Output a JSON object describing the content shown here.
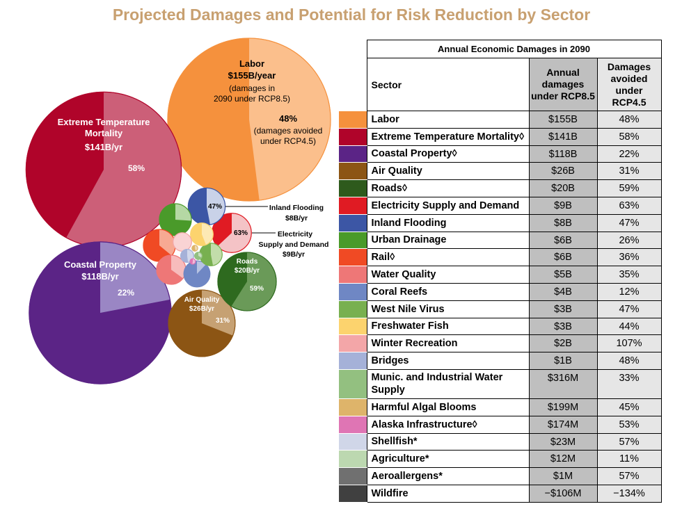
{
  "title": "Projected Damages and Potential for Risk Reduction by Sector",
  "chart_data": [
    {
      "type": "bubble",
      "bubbles": [
        {
          "name": "Labor",
          "damages": "$155B/year",
          "note1": "(damages in",
          "note2": "2090 under RCP8.5)",
          "avoided": "48%",
          "avoided_note1": "(damages avoided",
          "avoided_note2": "under RCP4.5)",
          "value_b": 155,
          "avoided_pct": 48,
          "color": "#f5913d",
          "light": "#fbbf8c"
        },
        {
          "name": "Extreme Temperature Mortality",
          "name_line1": "Extreme Temperature",
          "name_line2": "Mortality",
          "damages": "$141B/yr",
          "avoided": "58%",
          "value_b": 141,
          "avoided_pct": 58,
          "color": "#b0042a",
          "light": "#cc5f78"
        },
        {
          "name": "Coastal Property",
          "damages": "$118B/yr",
          "avoided": "22%",
          "value_b": 118,
          "avoided_pct": 22,
          "color": "#5b2486",
          "light": "#9a86c4"
        },
        {
          "name": "Air Quality",
          "damages": "$26B/yr",
          "avoided": "31%",
          "value_b": 26,
          "avoided_pct": 31,
          "color": "#8c5514",
          "light": "#c6a173"
        },
        {
          "name": "Roads",
          "damages": "$20B/yr",
          "avoided": "59%",
          "value_b": 20,
          "avoided_pct": 59,
          "color": "#2e6a1f",
          "light": "#6a9a58"
        },
        {
          "name": "Electricity Supply and Demand",
          "callout1": "Electricity",
          "callout2": "Supply and Demand",
          "callout3": "$9B/yr",
          "avoided": "63%",
          "value_b": 9,
          "avoided_pct": 63,
          "color": "#e01b23",
          "light": "#f4c3c6"
        },
        {
          "name": "Inland Flooding",
          "callout1": "Inland Flooding",
          "callout2": "$8B/yr",
          "avoided": "47%",
          "value_b": 8,
          "avoided_pct": 47,
          "color": "#3c56a5",
          "light": "#c9d2e8"
        },
        {
          "name": "Urban Drainage",
          "value_b": 6,
          "avoided_pct": 26,
          "color": "#4a9a2a",
          "light": "#b5d8a4"
        },
        {
          "name": "Rail",
          "value_b": 6,
          "avoided_pct": 36,
          "color": "#f04a24",
          "light": "#f7a993"
        },
        {
          "name": "Water Quality",
          "value_b": 5,
          "avoided_pct": 35,
          "color": "#ee7777",
          "light": "#f7bcbc"
        },
        {
          "name": "Coral Reefs",
          "value_b": 4,
          "avoided_pct": 12,
          "color": "#6f87c4",
          "light": "#b7c3e2"
        },
        {
          "name": "West Nile Virus",
          "value_b": 3,
          "avoided_pct": 47,
          "color": "#78b050",
          "light": "#c2ddaa"
        },
        {
          "name": "Freshwater Fish",
          "value_b": 3,
          "avoided_pct": 44,
          "color": "#fcd36e",
          "light": "#fde9b4"
        },
        {
          "name": "Winter Recreation",
          "value_b": 2,
          "avoided_pct": 107,
          "color": "#f3a6a8",
          "light": "#f9d3d4"
        },
        {
          "name": "Bridges",
          "value_b": 1,
          "avoided_pct": 48,
          "color": "#a5b1d8",
          "light": "#d2d8eb"
        },
        {
          "name": "Munic. and Industrial Water Supply",
          "value_b": 0.316,
          "avoided_pct": 33,
          "color": "#93c080",
          "light": "#c9dfbf"
        },
        {
          "name": "Harmful Algal Blooms",
          "value_b": 0.199,
          "avoided_pct": 45,
          "color": "#deb46a",
          "light": "#eed9b4"
        },
        {
          "name": "Alaska Infrastructure",
          "value_b": 0.174,
          "avoided_pct": 53,
          "color": "#df75b4",
          "light": "#efbad9"
        }
      ]
    },
    {
      "type": "table",
      "caption": "Annual Economic Damages in 2090",
      "columns": [
        "Sector",
        "Annual damages under RCP8.5",
        "Damages avoided under RCP4.5"
      ],
      "rows": [
        {
          "color": "#f5913d",
          "sector": "Labor",
          "damages": "$155B",
          "avoided": "48%"
        },
        {
          "color": "#b0042a",
          "sector": "Extreme Temperature Mortality◊",
          "damages": "$141B",
          "avoided": "58%"
        },
        {
          "color": "#5b2486",
          "sector": "Coastal Property◊",
          "damages": "$118B",
          "avoided": "22%"
        },
        {
          "color": "#8c5514",
          "sector": "Air Quality",
          "damages": "$26B",
          "avoided": "31%"
        },
        {
          "color": "#2e5a1c",
          "sector": "Roads◊",
          "damages": "$20B",
          "avoided": "59%"
        },
        {
          "color": "#e01b23",
          "sector": "Electricity Supply and Demand",
          "damages": "$9B",
          "avoided": "63%"
        },
        {
          "color": "#3c56a5",
          "sector": "Inland Flooding",
          "damages": "$8B",
          "avoided": "47%"
        },
        {
          "color": "#4a9a2a",
          "sector": "Urban Drainage",
          "damages": "$6B",
          "avoided": "26%"
        },
        {
          "color": "#f04a24",
          "sector": "Rail◊",
          "damages": "$6B",
          "avoided": "36%"
        },
        {
          "color": "#ee7777",
          "sector": "Water Quality",
          "damages": "$5B",
          "avoided": "35%"
        },
        {
          "color": "#6f87c4",
          "sector": "Coral Reefs",
          "damages": "$4B",
          "avoided": "12%"
        },
        {
          "color": "#78b050",
          "sector": "West Nile Virus",
          "damages": "$3B",
          "avoided": "47%"
        },
        {
          "color": "#fcd36e",
          "sector": "Freshwater Fish",
          "damages": "$3B",
          "avoided": "44%"
        },
        {
          "color": "#f3a6a8",
          "sector": "Winter Recreation",
          "damages": "$2B",
          "avoided": "107%"
        },
        {
          "color": "#a5b1d8",
          "sector": "Bridges",
          "damages": "$1B",
          "avoided": "48%"
        },
        {
          "color": "#93c080",
          "sector": "Munic. and Industrial Water Supply",
          "damages": "$316M",
          "avoided": "33%"
        },
        {
          "color": "#deb46a",
          "sector": "Harmful Algal Blooms",
          "damages": "$199M",
          "avoided": "45%"
        },
        {
          "color": "#df75b4",
          "sector": "Alaska Infrastructure◊",
          "damages": "$174M",
          "avoided": "53%"
        },
        {
          "color": "#d0d6e8",
          "sector": "Shellfish*",
          "damages": "$23M",
          "avoided": "57%"
        },
        {
          "color": "#bcd8b0",
          "sector": "Agriculture*",
          "damages": "$12M",
          "avoided": "11%"
        },
        {
          "color": "#707070",
          "sector": "Aeroallergens*",
          "damages": "$1M",
          "avoided": "57%"
        },
        {
          "color": "#404040",
          "sector": "Wildfire",
          "damages": "−$106M",
          "avoided": "−134%"
        }
      ]
    }
  ]
}
